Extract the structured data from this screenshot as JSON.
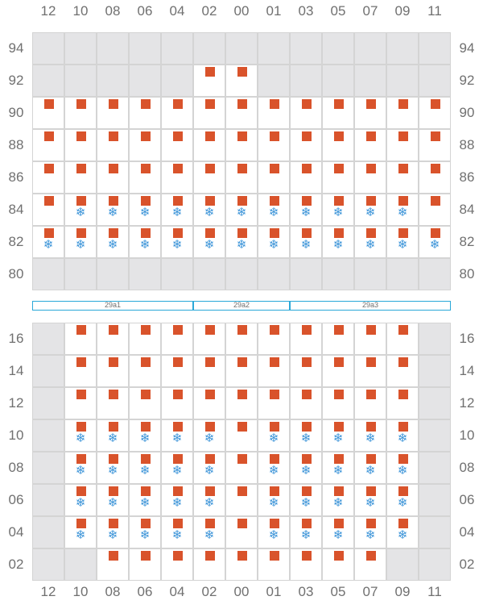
{
  "column_labels": [
    "12",
    "10",
    "08",
    "06",
    "04",
    "02",
    "00",
    "01",
    "03",
    "05",
    "07",
    "09",
    "11"
  ],
  "top_block": {
    "rows": [
      "94",
      "92",
      "90",
      "88",
      "86",
      "84",
      "82",
      "80"
    ],
    "layout": [
      "0000000000000",
      "0000011000000",
      "1111111111111",
      "1111111111111",
      "1111111111111",
      "1111111111111",
      "1111111111111",
      "0000000000000"
    ],
    "plugs": [
      "0000000000000",
      "0000011000000",
      "1111111111111",
      "1111111111111",
      "1111111111111",
      "1111111111111",
      "1111111111111",
      "0000000000000"
    ],
    "freezers": [
      "0000000000000",
      "0000000000000",
      "0000000000000",
      "0000000000000",
      "0000000000000",
      "0111111111110",
      "1111111111111",
      "0000000000000"
    ]
  },
  "zones": [
    {
      "label": "29a1"
    },
    {
      "label": "29a2"
    },
    {
      "label": "29a3"
    }
  ],
  "bottom_block": {
    "rows": [
      "16",
      "14",
      "12",
      "10",
      "08",
      "06",
      "04",
      "02"
    ],
    "layout": [
      "0111111111110",
      "0111111111110",
      "0111111111110",
      "0111111111110",
      "0111111111110",
      "0111111111110",
      "0111111111110",
      "0011111111100"
    ],
    "plugs": [
      "0111111111110",
      "0111111111110",
      "0111111111110",
      "0111111111110",
      "0111111111110",
      "0111111111110",
      "0111111111110",
      "0011111111100"
    ],
    "freezers": [
      "0000000000000",
      "0000000000000",
      "0000000000000",
      "0111110111110",
      "0111110111110",
      "0111110111110",
      "0111110111110",
      "0000000000000"
    ]
  },
  "icons": {
    "plug": "outlet-square-icon",
    "freezer": "snowflake-icon"
  },
  "colors": {
    "unavailable": "#e4e4e6",
    "available": "#ffffff",
    "outlet": "#d9532b",
    "freezer": "#3a93d8",
    "zone_border": "#2aa8d8"
  }
}
